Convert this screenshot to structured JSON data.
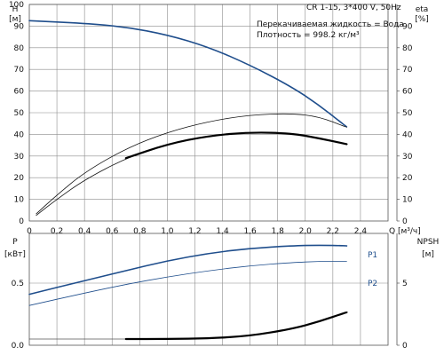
{
  "chart_data": [
    {
      "type": "line",
      "info": [
        "CR 1-15, 3*400 V, 50Hz",
        "Перекачиваемая жидкость = Вода",
        "Плотность = 998.2 кг/м³"
      ],
      "xlabel": "Q [м³/ч]",
      "xlim": [
        0,
        2.6
      ],
      "x_ticks": [
        0,
        0.2,
        0.4,
        0.6,
        0.8,
        1.0,
        1.2,
        1.4,
        1.6,
        1.8,
        2.0,
        2.2,
        2.4
      ],
      "x_tick_labels": [
        "0",
        "0,2",
        "0,4",
        "0,6",
        "0,8",
        "1,0",
        "1,2",
        "1,4",
        "1,6",
        "1,8",
        "2,0",
        "2,2",
        "2,4"
      ],
      "y_left": {
        "label": "H",
        "unit": "[м]",
        "lim": [
          0,
          100
        ],
        "ticks": [
          0,
          10,
          20,
          30,
          40,
          50,
          60,
          70,
          80,
          90,
          100
        ]
      },
      "y_right": {
        "label": "eta",
        "unit": "[%]",
        "lim": [
          0,
          100
        ],
        "ticks": [
          0,
          10,
          20,
          30,
          40,
          50,
          60,
          70,
          80,
          90
        ]
      },
      "grid": true,
      "series": [
        {
          "id": "head",
          "color": "#1f4e8c",
          "x": [
            0,
            0.4,
            0.7,
            1.0,
            1.3,
            1.6,
            1.9,
            2.1,
            2.3
          ],
          "y": [
            92.5,
            91.3,
            89.6,
            86.0,
            80.3,
            72.0,
            62.0,
            53.5,
            43.5
          ]
        },
        {
          "id": "eta-thin-upper",
          "color": "#111111",
          "x": [
            0.05,
            0.2,
            0.4,
            0.7,
            1.0,
            1.3,
            1.6,
            1.9,
            2.1,
            2.3
          ],
          "y": [
            3.3,
            12.0,
            22.5,
            33.5,
            41.0,
            46.0,
            49.0,
            49.7,
            48.2,
            43.3
          ]
        },
        {
          "id": "eta-thin-lower",
          "color": "#111111",
          "x": [
            0.05,
            0.2,
            0.4,
            0.7,
            1.0,
            1.3,
            1.6,
            1.9,
            2.1,
            2.3
          ],
          "y": [
            2.6,
            10.0,
            19.0,
            29.0,
            35.5,
            39.3,
            41.0,
            40.5,
            38.2,
            35.5
          ]
        },
        {
          "id": "eta-bold",
          "color": "#000000",
          "x": [
            0.7,
            1.0,
            1.3,
            1.6,
            1.9,
            2.1,
            2.3
          ],
          "y": [
            29.0,
            35.5,
            39.3,
            41.0,
            40.5,
            38.2,
            35.5
          ]
        }
      ]
    },
    {
      "type": "line",
      "xlim": [
        0,
        2.6
      ],
      "y_left": {
        "label": "P",
        "unit": "[кВт]",
        "lim": [
          0,
          0.9
        ],
        "ticks": [
          0,
          0.5
        ],
        "tick_labels": [
          "0.0",
          "0.5"
        ]
      },
      "y_right": {
        "label": "NPSH",
        "unit": "[м]",
        "lim": [
          0,
          9
        ],
        "ticks": [
          0,
          5
        ],
        "tick_labels": [
          "0",
          "5"
        ]
      },
      "grid": true,
      "series": [
        {
          "id": "P1",
          "name": "P1",
          "color": "#1f4e8c",
          "x": [
            0,
            0.4,
            0.7,
            1.0,
            1.3,
            1.6,
            1.9,
            2.1,
            2.3
          ],
          "y": [
            0.41,
            0.52,
            0.6,
            0.68,
            0.74,
            0.78,
            0.8,
            0.805,
            0.8
          ]
        },
        {
          "id": "P2",
          "name": "P2",
          "color": "#1f4e8c",
          "x": [
            0,
            0.4,
            0.7,
            1.0,
            1.3,
            1.6,
            1.9,
            2.1,
            2.3
          ],
          "y": [
            0.32,
            0.42,
            0.49,
            0.55,
            0.6,
            0.64,
            0.665,
            0.675,
            0.675
          ]
        },
        {
          "id": "npsh-thin",
          "color": "#555555",
          "x": [
            0,
            0.7
          ],
          "y": [
            0.05,
            0.05
          ]
        },
        {
          "id": "npsh-bold",
          "color": "#000000",
          "x": [
            0.7,
            1.0,
            1.3,
            1.6,
            1.9,
            2.1,
            2.3
          ],
          "y": [
            0.05,
            0.05,
            0.055,
            0.075,
            0.13,
            0.19,
            0.265
          ]
        }
      ]
    }
  ]
}
